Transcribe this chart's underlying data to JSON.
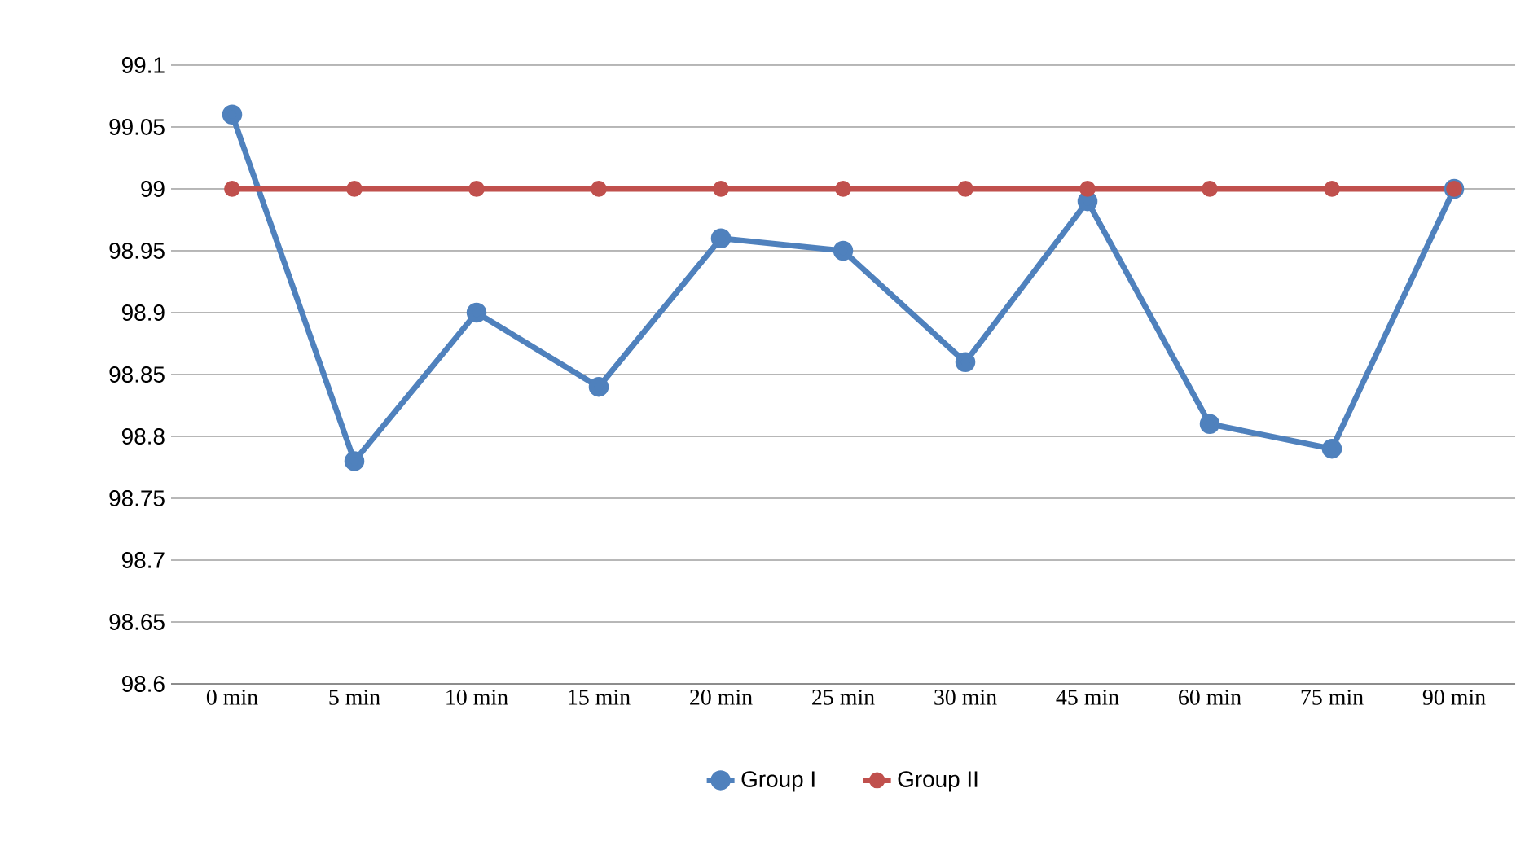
{
  "chart_data": {
    "type": "line",
    "categories": [
      "0 min",
      "5 min",
      "10 min",
      "15 min",
      "20 min",
      "25 min",
      "30 min",
      "45 min",
      "60 min",
      "75 min",
      "90 min"
    ],
    "series": [
      {
        "name": "Group I",
        "color": "#4f81bd",
        "values": [
          99.06,
          98.78,
          98.9,
          98.84,
          98.96,
          98.95,
          98.86,
          98.99,
          98.81,
          98.79,
          99
        ]
      },
      {
        "name": "Group II",
        "color": "#c0504d",
        "values": [
          99,
          99,
          99,
          99,
          99,
          99,
          99,
          99,
          99,
          99,
          99
        ]
      }
    ],
    "ylim": [
      98.6,
      99.1
    ],
    "yticks": [
      98.6,
      98.65,
      98.7,
      98.75,
      98.8,
      98.85,
      98.9,
      98.95,
      99,
      99.05,
      99.1
    ],
    "grid": "y",
    "legend": "bottom",
    "marker": "circle",
    "line_style": "solid"
  }
}
